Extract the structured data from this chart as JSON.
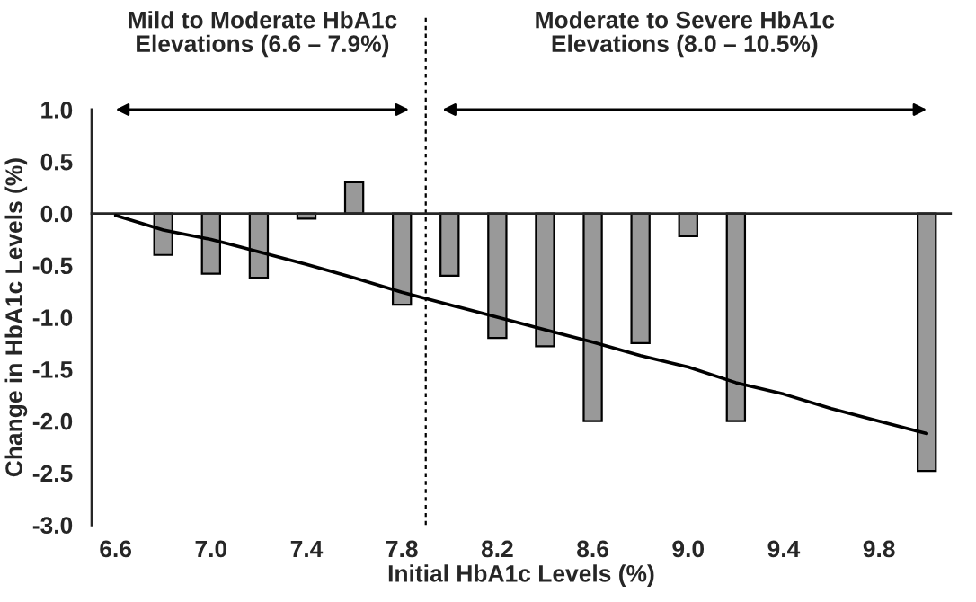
{
  "chart_data": {
    "type": "bar",
    "xlabel": "Initial HbA1c Levels (%)",
    "ylabel": "Change in HbA1c Levels (%)",
    "categories": [
      "6.6",
      null,
      "7.0",
      null,
      "7.4",
      null,
      "7.8",
      null,
      "8.2",
      null,
      "8.6",
      null,
      "9.0",
      null,
      "9.4",
      null,
      "9.8",
      null
    ],
    "series": [
      {
        "color": "#999999",
        "values": [
          null,
          -0.4,
          -0.58,
          -0.62,
          -0.05,
          0.3,
          -0.88,
          -0.6,
          -1.2,
          -1.28,
          -2.0,
          -1.25,
          -0.22,
          -2.0,
          null,
          null,
          null,
          -2.48
        ]
      },
      {
        "type": "line",
        "color": "#000000",
        "values": [
          -0.02,
          -0.16,
          -0.25,
          -0.37,
          -0.49,
          -0.62,
          -0.76,
          -0.88,
          -1.0,
          -1.12,
          -1.24,
          -1.37,
          -1.48,
          -1.63,
          -1.74,
          -1.88,
          -2.0,
          -2.12
        ]
      }
    ],
    "ylim": [
      -3,
      1
    ],
    "yticks": [
      {
        "value": -3,
        "label": "-3.0"
      },
      {
        "value": -2.5,
        "label": "-2.5"
      },
      {
        "value": -2,
        "label": "-2.0"
      },
      {
        "value": -1.5,
        "label": "-1.5"
      },
      {
        "value": -1,
        "label": "-1.0"
      },
      {
        "value": -0.5,
        "label": "-0.5"
      },
      {
        "value": 0,
        "label": "0.0"
      },
      {
        "value": 0.5,
        "label": "0.5"
      },
      {
        "value": 1,
        "label": "1.0"
      }
    ],
    "annotations": [
      "Mild to Moderate HbA1c\nElevations (6.6 – 7.9%)",
      "Moderate to Severe HbA1c\nElevations (8.0 – 10.5%)"
    ],
    "grid": false,
    "legend": false,
    "marker": "none"
  }
}
